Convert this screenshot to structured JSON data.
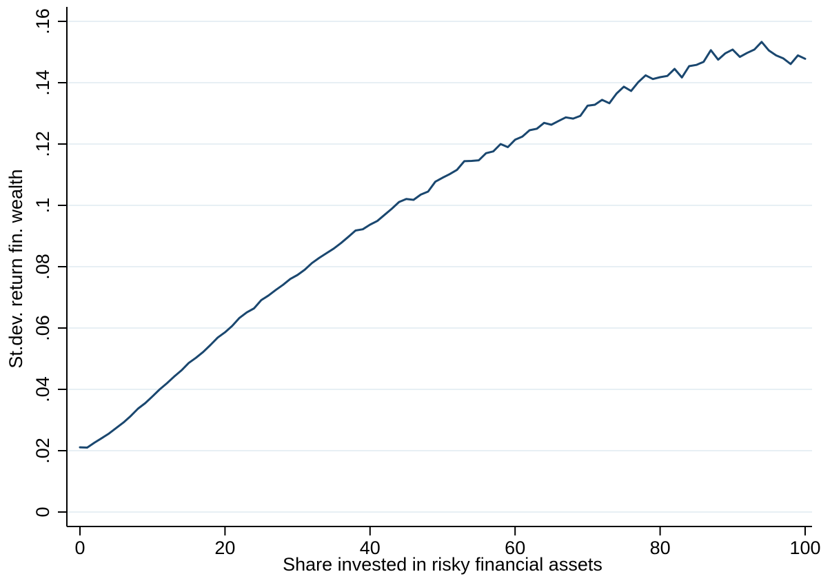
{
  "chart_data": {
    "type": "line",
    "xlabel": "Share invested in risky financial assets",
    "ylabel": "St.dev. return fin. wealth",
    "xlim": [
      0,
      100
    ],
    "ylim": [
      0,
      0.16
    ],
    "xticks": [
      0,
      20,
      40,
      60,
      80,
      100
    ],
    "xtick_labels": [
      "0",
      "20",
      "40",
      "60",
      "80",
      "100"
    ],
    "yticks": [
      0,
      0.02,
      0.04,
      0.06,
      0.08,
      0.1,
      0.12,
      0.14,
      0.16
    ],
    "ytick_labels": [
      "0",
      ".02",
      ".04",
      ".06",
      ".08",
      ".1",
      ".12",
      ".14",
      ".16"
    ],
    "grid": "horizontal",
    "colors": {
      "line": "#1a476f",
      "grid": "#e7eff4",
      "axis": "#000000"
    },
    "series": [
      {
        "x": [
          0,
          1,
          2,
          3,
          4,
          5,
          6,
          7,
          8,
          9,
          10,
          11,
          12,
          13,
          14,
          15,
          16,
          17,
          18,
          19,
          20,
          21,
          22,
          23,
          24,
          25,
          26,
          27,
          28,
          29,
          30,
          31,
          32,
          33,
          34,
          35,
          36,
          37,
          38,
          39,
          40,
          41,
          42,
          43,
          44,
          45,
          46,
          47,
          48,
          49,
          50,
          51,
          52,
          53,
          54,
          55,
          56,
          57,
          58,
          59,
          60,
          61,
          62,
          63,
          64,
          65,
          66,
          67,
          68,
          69,
          70,
          71,
          72,
          73,
          74,
          75,
          76,
          77,
          78,
          79,
          80,
          81,
          82,
          83,
          84,
          85,
          86,
          87,
          88,
          89,
          90,
          91,
          92,
          93,
          94,
          95,
          96,
          97,
          98,
          99,
          100
        ],
        "values": [
          0.0211,
          0.021,
          0.0226,
          0.0241,
          0.0256,
          0.0274,
          0.0292,
          0.0313,
          0.0337,
          0.0355,
          0.0377,
          0.04,
          0.042,
          0.0442,
          0.0462,
          0.0486,
          0.0503,
          0.0522,
          0.0545,
          0.0569,
          0.0586,
          0.0607,
          0.0633,
          0.0651,
          0.0664,
          0.0691,
          0.0706,
          0.0724,
          0.0741,
          0.076,
          0.0773,
          0.079,
          0.0812,
          0.0829,
          0.0844,
          0.0859,
          0.0877,
          0.0897,
          0.0918,
          0.0922,
          0.0937,
          0.0949,
          0.0969,
          0.0989,
          0.1011,
          0.1021,
          0.1018,
          0.1035,
          0.1045,
          0.1077,
          0.109,
          0.1102,
          0.1116,
          0.1144,
          0.1145,
          0.1147,
          0.117,
          0.1176,
          0.12,
          0.119,
          0.1214,
          0.1224,
          0.1245,
          0.125,
          0.1269,
          0.1263,
          0.1275,
          0.1287,
          0.1283,
          0.1292,
          0.1325,
          0.1328,
          0.1344,
          0.1333,
          0.1365,
          0.1387,
          0.1373,
          0.1402,
          0.1424,
          0.1412,
          0.1418,
          0.1422,
          0.1445,
          0.1417,
          0.1454,
          0.1458,
          0.1468,
          0.1506,
          0.1475,
          0.1496,
          0.1508,
          0.1484,
          0.1497,
          0.1508,
          0.1533,
          0.1505,
          0.1489,
          0.1479,
          0.1461,
          0.1489,
          0.1478
        ]
      }
    ]
  }
}
